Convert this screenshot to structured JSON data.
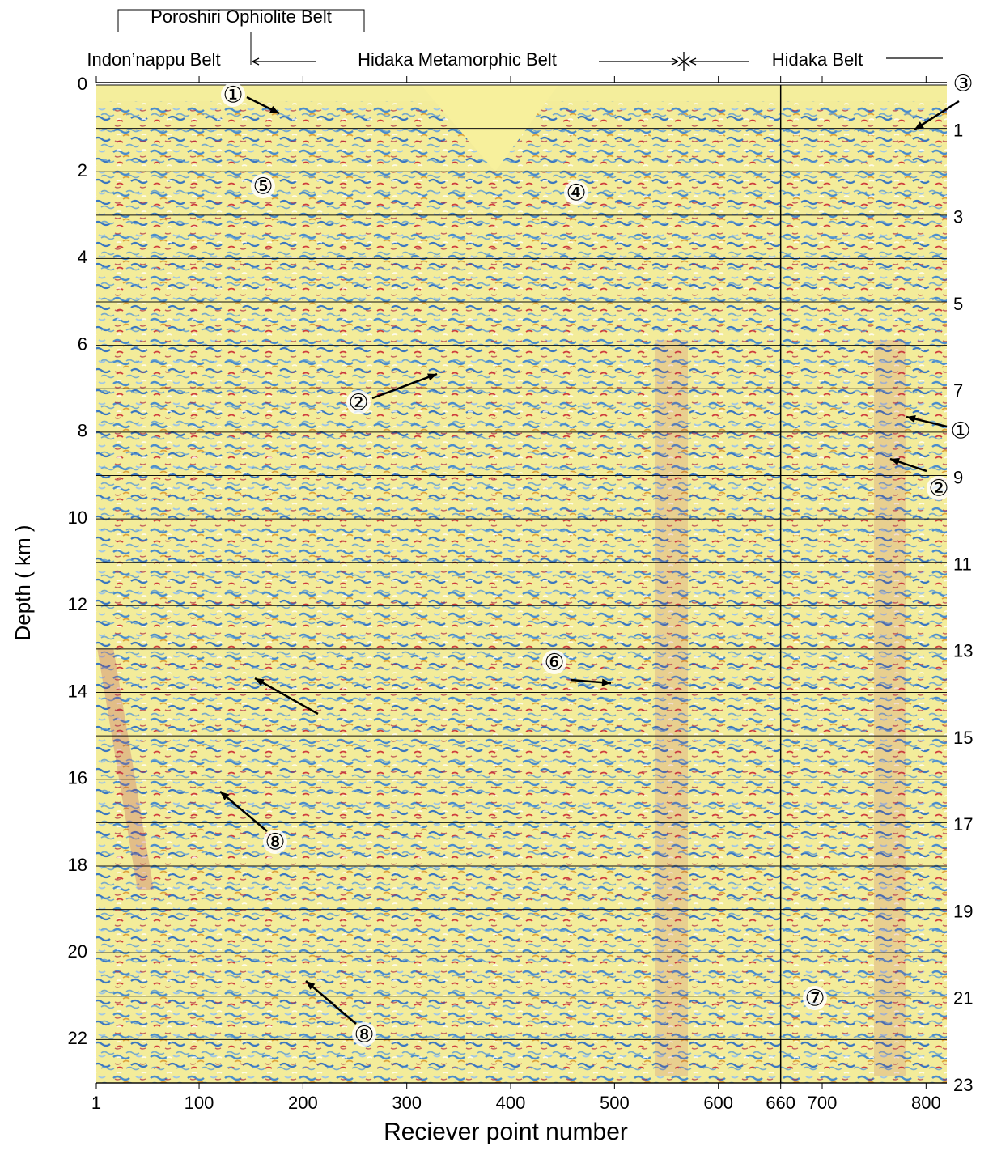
{
  "chart_data": {
    "type": "seismic",
    "x_label": "Reciever point number",
    "y_label": "Depth ( km )",
    "xlim": [
      1,
      820
    ],
    "xticks": [
      1,
      100,
      200,
      300,
      400,
      500,
      600,
      660,
      700,
      800
    ],
    "ylim": [
      0,
      23
    ],
    "yticks": [
      0,
      2,
      4,
      6,
      8,
      10,
      12,
      14,
      16,
      18,
      20,
      22
    ],
    "y2lim": [
      0,
      23
    ],
    "y2ticks": [
      1,
      3,
      5,
      7,
      9,
      11,
      13,
      15,
      17,
      19,
      21,
      23
    ],
    "grid": true,
    "boundary_x": 660,
    "belts": [
      "Poroshiri Ophiolite Belt",
      "Indon’nappu Belt",
      "Hidaka Metamorphic Belt",
      "Hidaka Belt"
    ],
    "annotations": [
      "①",
      "③",
      "⑤",
      "④",
      "②",
      "①",
      "②",
      "⑥",
      "⑧",
      "⑦",
      "⑧"
    ]
  }
}
